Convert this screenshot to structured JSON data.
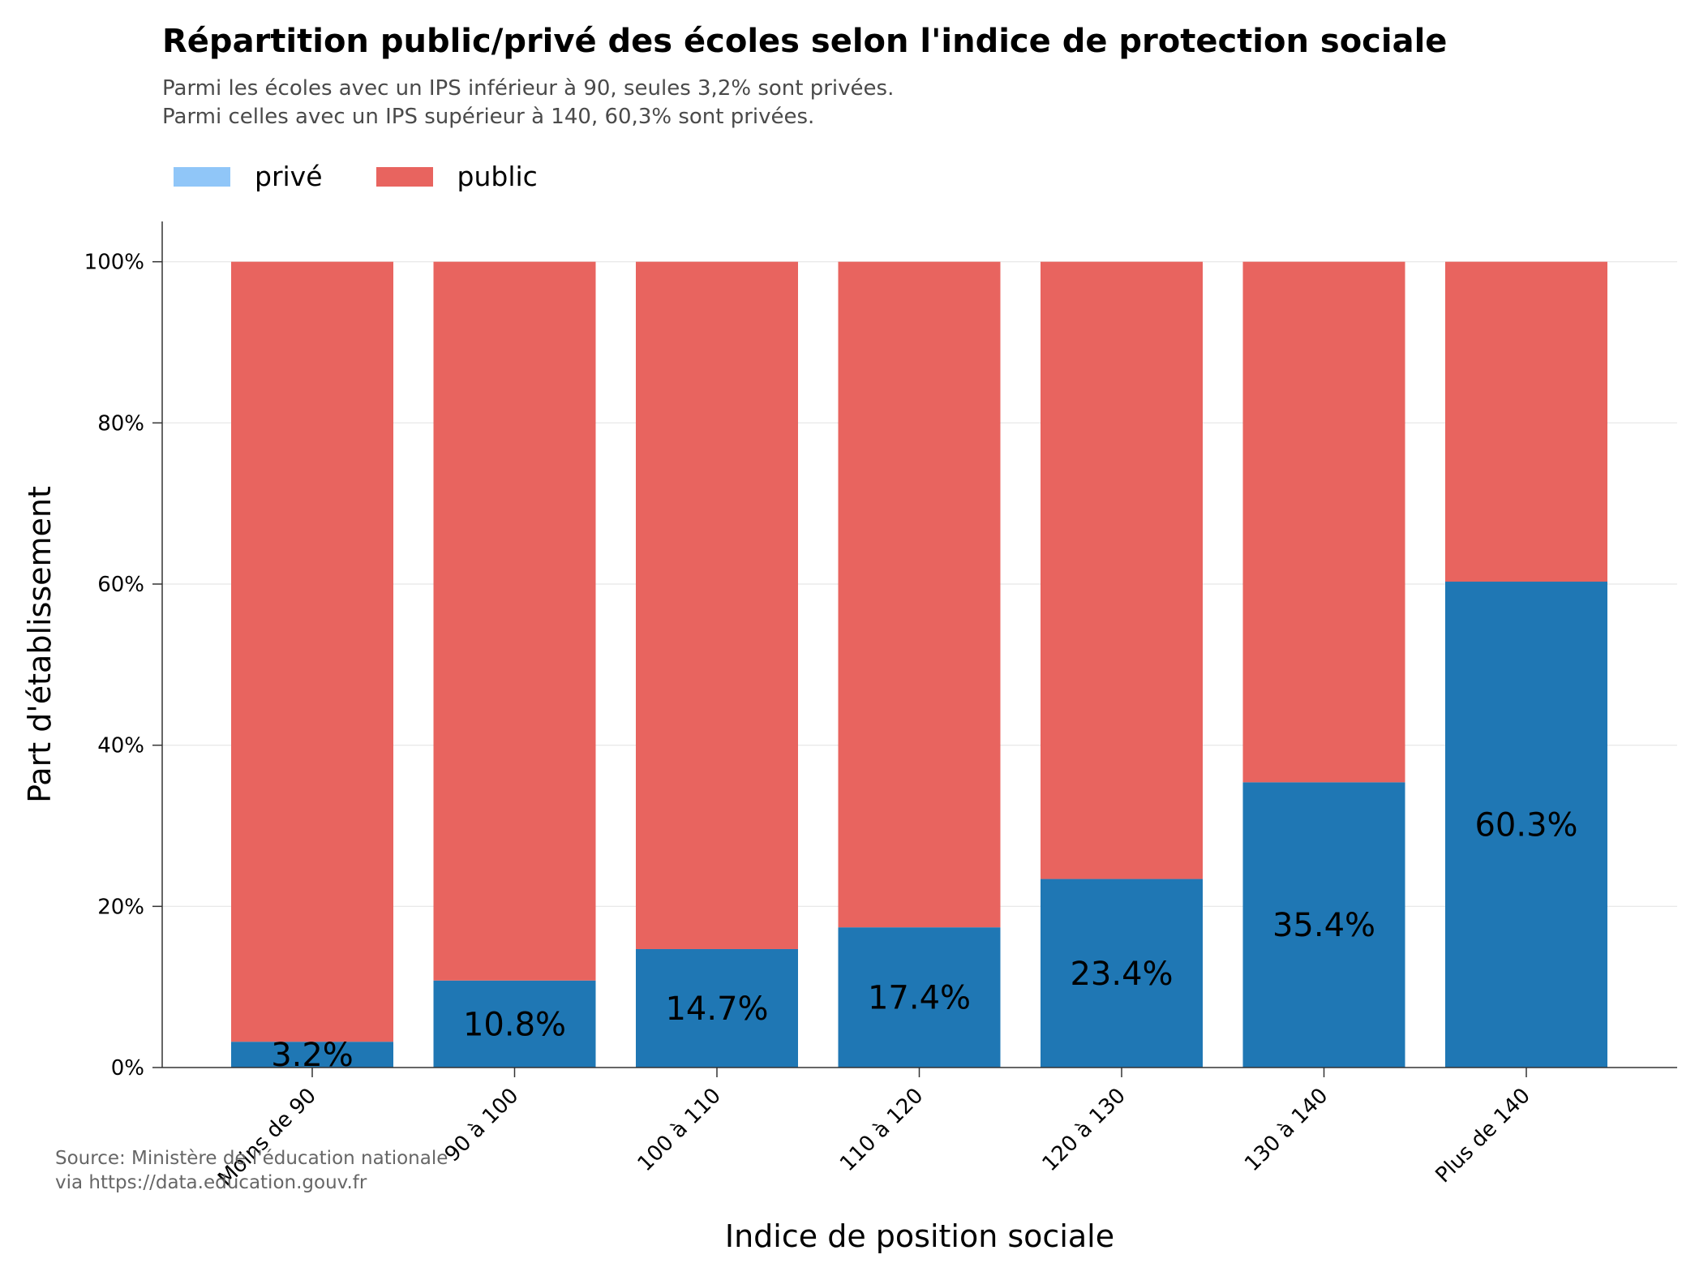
{
  "chart_data": {
    "type": "bar",
    "stacked": true,
    "title": "Répartition public/privé des écoles selon l'indice de protection sociale",
    "subtitle": [
      "Parmi les écoles avec un IPS inférieur à 90, seules 3,2% sont privées.",
      "Parmi celles avec un IPS supérieur à 140, 60,3% sont privées."
    ],
    "xlabel": "Indice de position sociale",
    "ylabel": "Part d'établissement",
    "categories": [
      "Moins de 90",
      "90 à 100",
      "100 à 110",
      "110 à 120",
      "120 à 130",
      "130 à 140",
      "Plus de 140"
    ],
    "series": [
      {
        "name": "privé",
        "values": [
          3.2,
          10.8,
          14.7,
          17.4,
          23.4,
          35.4,
          60.3
        ],
        "color": "#1f77b4",
        "legend_color": "#90c6f8"
      },
      {
        "name": "public",
        "values": [
          96.8,
          89.2,
          85.3,
          82.6,
          76.6,
          64.6,
          39.7
        ],
        "color": "#e8645f"
      }
    ],
    "data_labels": [
      "3.2%",
      "10.8%",
      "14.7%",
      "17.4%",
      "23.4%",
      "35.4%",
      "60.3%"
    ],
    "yticks": [
      0,
      20,
      40,
      60,
      80,
      100
    ],
    "ytick_labels": [
      "0%",
      "20%",
      "40%",
      "60%",
      "80%",
      "100%"
    ],
    "ylim": [
      0,
      105
    ],
    "grid": true,
    "legend_position": "top-left",
    "source": [
      "Source: Ministère de l'éducation nationale",
      "via https://data.education.gouv.fr"
    ]
  }
}
